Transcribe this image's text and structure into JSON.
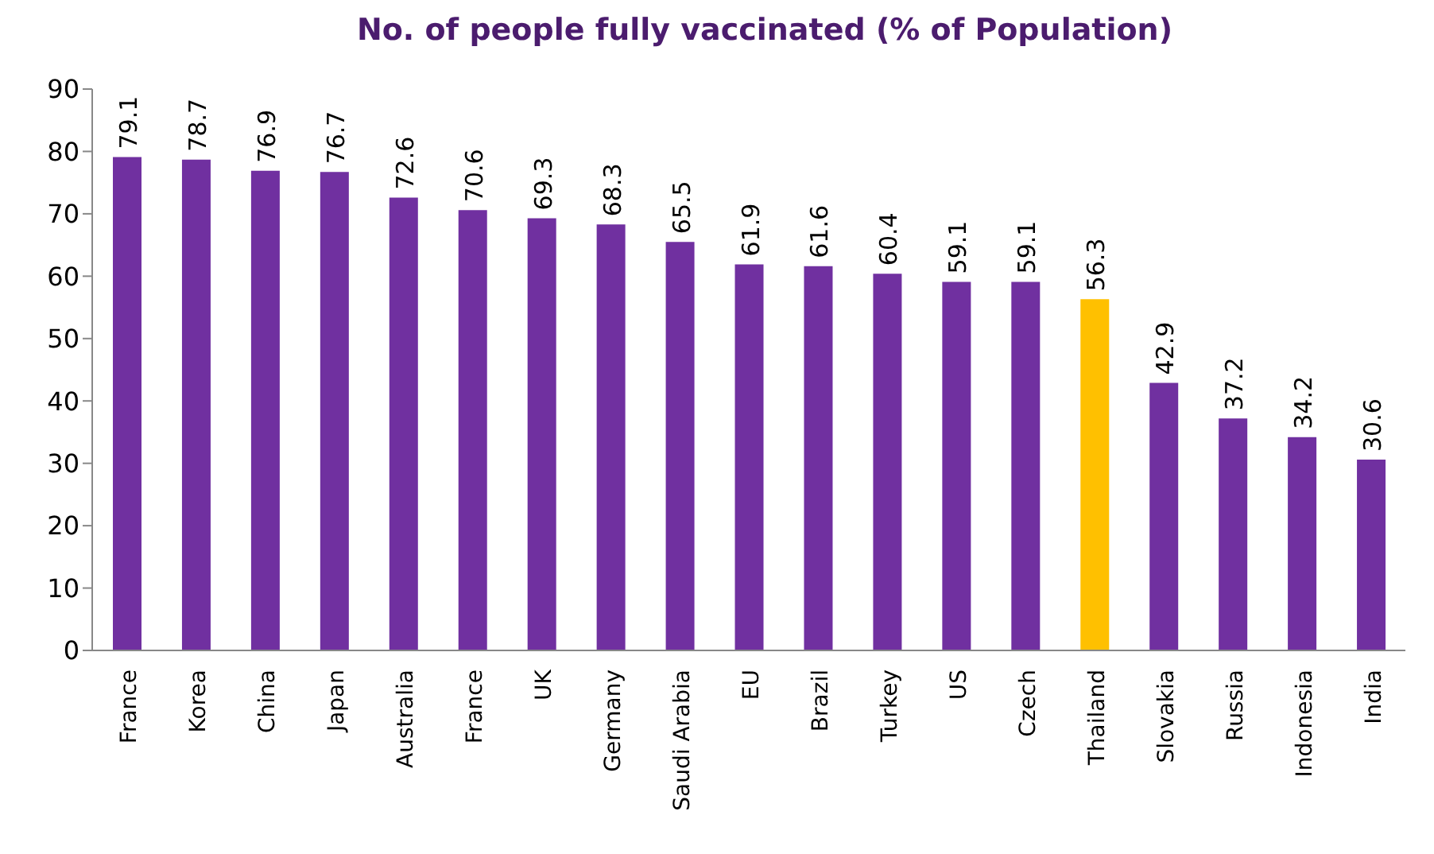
{
  "chart_data": {
    "type": "bar",
    "title": "No. of people fully vaccinated (% of Population)",
    "categories": [
      "France",
      "Korea",
      "China",
      "Japan",
      "Australia",
      "France",
      "UK",
      "Germany",
      "Saudi Arabia",
      "EU",
      "Brazil",
      "Turkey",
      "US",
      "Czech",
      "Thailand",
      "Slovakia",
      "Russia",
      "Indonesia",
      "India"
    ],
    "values": [
      79.1,
      78.7,
      76.9,
      76.7,
      72.6,
      70.6,
      69.3,
      68.3,
      65.5,
      61.9,
      61.6,
      60.4,
      59.1,
      59.1,
      56.3,
      42.9,
      37.2,
      34.2,
      30.6
    ],
    "colors": [
      "#7030a0",
      "#7030a0",
      "#7030a0",
      "#7030a0",
      "#7030a0",
      "#7030a0",
      "#7030a0",
      "#7030a0",
      "#7030a0",
      "#7030a0",
      "#7030a0",
      "#7030a0",
      "#7030a0",
      "#7030a0",
      "#ffc000",
      "#7030a0",
      "#7030a0",
      "#7030a0",
      "#7030a0"
    ],
    "ylim": [
      0,
      90
    ],
    "yticks": [
      0,
      10,
      20,
      30,
      40,
      50,
      60,
      70,
      80,
      90
    ],
    "data_labels": true
  }
}
